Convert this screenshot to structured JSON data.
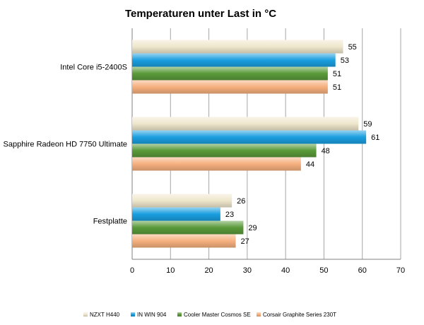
{
  "chart_data": {
    "type": "bar",
    "orientation": "horizontal",
    "title": "Temperaturen unter Last in °C",
    "categories": [
      "Intel Core i5-2400S",
      "Sapphire Radeon HD 7750 Ultimate",
      "Festplatte"
    ],
    "series": [
      {
        "name": "NZXT H440",
        "values": [
          55,
          59,
          26
        ],
        "color": "#efe7cc"
      },
      {
        "name": "IN WIN 904",
        "values": [
          53,
          61,
          23
        ],
        "color": "#1a9fe0"
      },
      {
        "name": "Cooler Master Cosmos SE",
        "values": [
          51,
          48,
          29
        ],
        "color": "#5a9a3a"
      },
      {
        "name": "Corsair Graphite Series 230T",
        "values": [
          51,
          44,
          27
        ],
        "color": "#f6b07e"
      }
    ],
    "xlim": [
      0,
      70
    ],
    "xticks": [
      0,
      10,
      20,
      30,
      40,
      50,
      60,
      70
    ],
    "grid": true,
    "legend": "bottom",
    "data_labels": true
  }
}
